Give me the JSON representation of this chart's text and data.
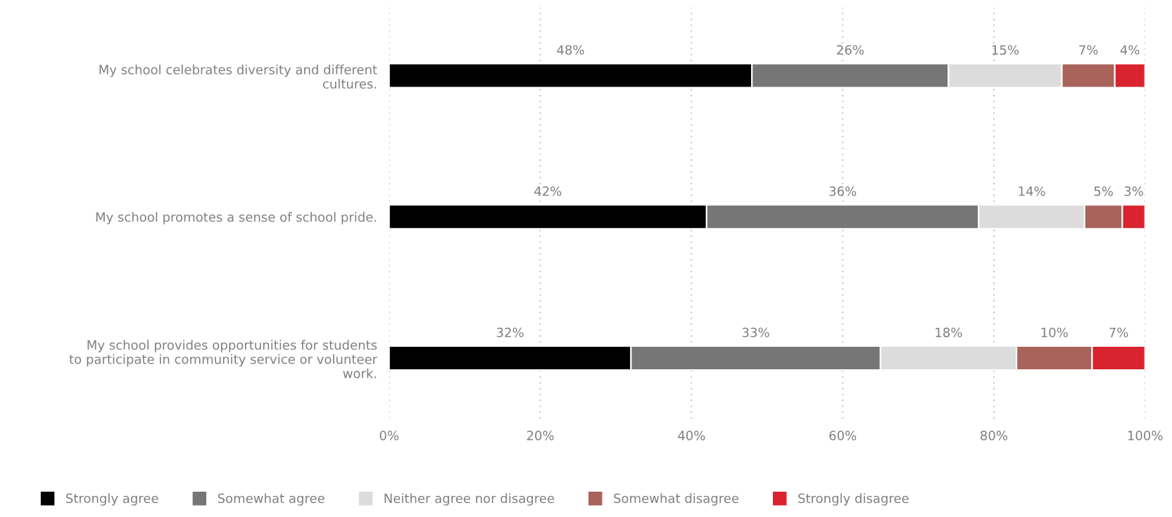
{
  "chart_data": {
    "type": "bar",
    "orientation": "horizontal",
    "stacked": true,
    "categories": [
      "My school celebrates diversity and different\ncultures.",
      "My school promotes a sense of school pride.",
      "My school provides opportunities for students\nto participate in community service or volunteer\nwork."
    ],
    "series": [
      {
        "name": "Strongly agree",
        "color": "#000000",
        "values": [
          48,
          42,
          32
        ]
      },
      {
        "name": "Somewhat agree",
        "color": "#767676",
        "values": [
          26,
          36,
          33
        ]
      },
      {
        "name": "Neither agree nor disagree",
        "color": "#dcdcdc",
        "values": [
          15,
          14,
          18
        ]
      },
      {
        "name": "Somewhat disagree",
        "color": "#a8635a",
        "values": [
          7,
          5,
          10
        ]
      },
      {
        "name": "Strongly disagree",
        "color": "#d9232e",
        "values": [
          4,
          3,
          7
        ]
      }
    ],
    "xlim": [
      0,
      100
    ],
    "xticks": [
      {
        "value": 0,
        "label": "0%"
      },
      {
        "value": 20,
        "label": "20%"
      },
      {
        "value": 40,
        "label": "40%"
      },
      {
        "value": 60,
        "label": "60%"
      },
      {
        "value": 80,
        "label": "80%"
      },
      {
        "value": 100,
        "label": "100%"
      }
    ],
    "grid": "x",
    "legend": "bottom",
    "marker": "square",
    "value_labels": [
      [
        "48%",
        "42%",
        "32%"
      ],
      [
        "26%",
        "36%",
        "33%"
      ],
      [
        "15%",
        "14%",
        "18%"
      ],
      [
        "7%",
        "5%",
        "10%"
      ],
      [
        "4%",
        "3%",
        "7%"
      ]
    ]
  }
}
